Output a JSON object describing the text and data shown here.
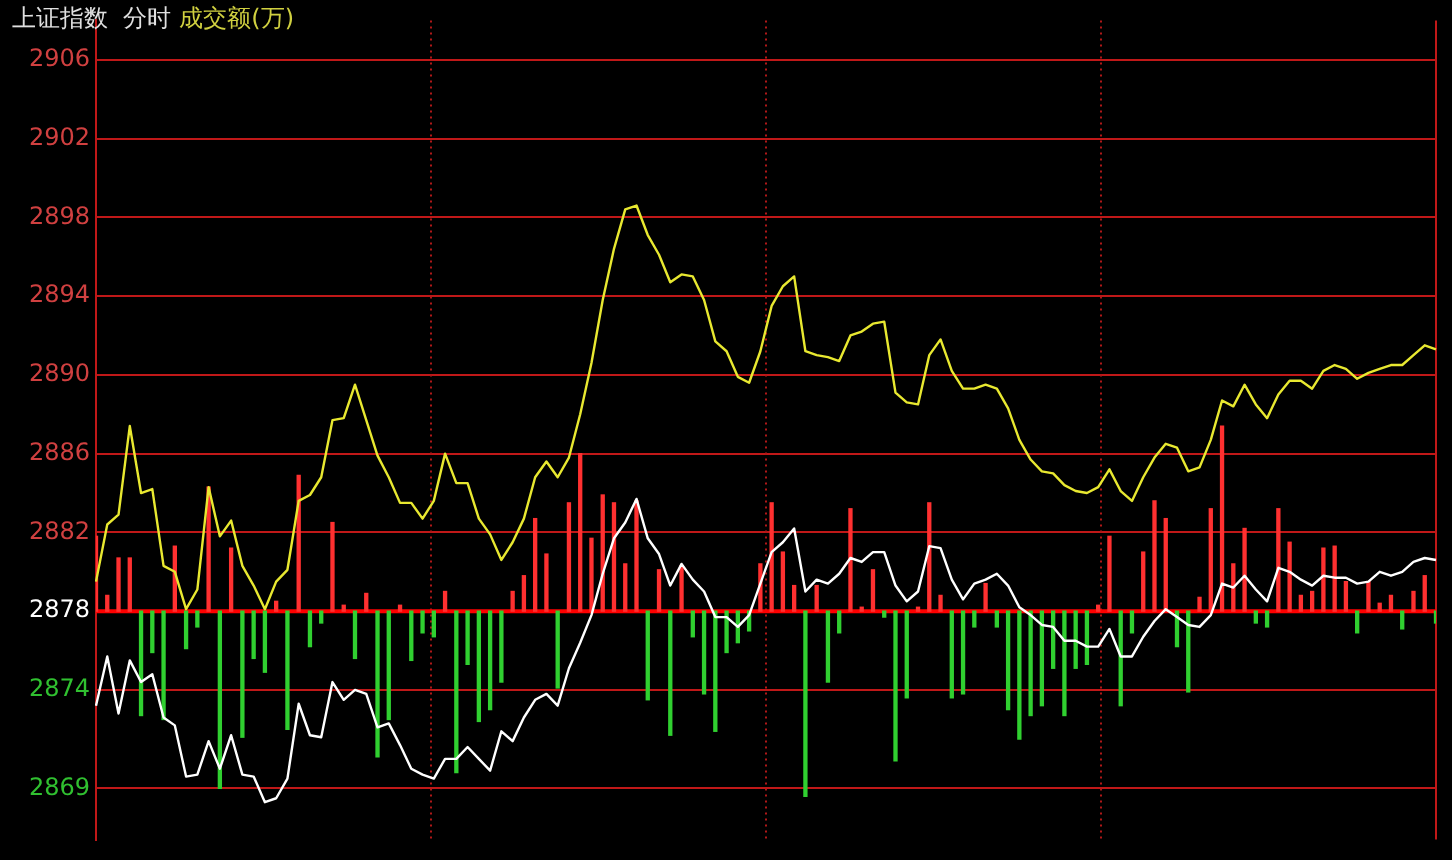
{
  "chart_data": {
    "type": "line",
    "title": "上证指数  分时",
    "subtitle": "成交额(万)",
    "categories": [
      null,
      null,
      null,
      null,
      null,
      null,
      null,
      null,
      null,
      null,
      null,
      null,
      null,
      null,
      null,
      null,
      null,
      null,
      null,
      null,
      null,
      null,
      null,
      null,
      null,
      null,
      null,
      null,
      null,
      null,
      null,
      null,
      null,
      null,
      null,
      null,
      null,
      null,
      null,
      null,
      null,
      null,
      null,
      null,
      null,
      null,
      null,
      null,
      null,
      null,
      null,
      null,
      null,
      null,
      null,
      null,
      null,
      null,
      null,
      null,
      null,
      null,
      null,
      null,
      null,
      null,
      null,
      null,
      null,
      null,
      null,
      null,
      null,
      null,
      null,
      null,
      null,
      null,
      null,
      null,
      null,
      null,
      null,
      null,
      null,
      null,
      null,
      null,
      null,
      null,
      null,
      null,
      null,
      null,
      null,
      null,
      null,
      null,
      null,
      null,
      null,
      null,
      null,
      null,
      null,
      null,
      null,
      null,
      null,
      null,
      null,
      null,
      null,
      null,
      null,
      null,
      null,
      null,
      null,
      null
    ],
    "series": [
      {
        "type": "bar",
        "base": [
          2878,
          2878,
          2878,
          2878,
          2878,
          2878,
          2878,
          2878,
          2878,
          2878,
          2878,
          2878,
          2878,
          2878,
          2878,
          2878,
          2878,
          2878,
          2878,
          2878,
          2878,
          2878,
          2878,
          2878,
          2878,
          2878,
          2878,
          2878,
          2878,
          2878,
          2878,
          2878,
          2878,
          2878,
          2878,
          2878,
          2878,
          2878,
          2878,
          2878,
          2878,
          2878,
          2878,
          2878,
          2878,
          2878,
          2878,
          2878,
          2878,
          2878,
          2878,
          2878,
          2878,
          2878,
          2878,
          2878,
          2878,
          2878,
          2878,
          2878,
          2878,
          2878,
          2878,
          2878,
          2878,
          2878,
          2878,
          2878,
          2878,
          2878,
          2878,
          2878,
          2878,
          2878,
          2878,
          2878,
          2878,
          2878,
          2878,
          2878,
          2878,
          2878,
          2878,
          2878,
          2878,
          2878,
          2878,
          2878,
          2878,
          2878,
          2878,
          2878,
          2878,
          2878,
          2878,
          2878,
          2878,
          2878,
          2878,
          2878,
          2878,
          2878,
          2878,
          2878,
          2878,
          2878,
          2878,
          2878,
          2878,
          2878,
          2878,
          2878,
          2878,
          2878,
          2878,
          2878,
          2878,
          2878,
          2878,
          2878
        ],
        "values": [
          3.8,
          0.8,
          2.7,
          2.7,
          -5.3,
          -2.1,
          -5.5,
          3.3,
          -1.9,
          -0.8,
          6.3,
          -9.0,
          3.2,
          -6.4,
          -2.4,
          -3.1,
          0.5,
          -6.0,
          6.9,
          -1.8,
          -0.6,
          4.5,
          0.3,
          -2.4,
          0.9,
          -7.4,
          -5.5,
          0.3,
          -2.5,
          -1.1,
          -1.3,
          1.0,
          -8.2,
          -2.7,
          -5.6,
          -5.0,
          -3.6,
          1.0,
          1.8,
          4.7,
          2.9,
          -3.9,
          5.5,
          8.0,
          3.7,
          5.9,
          5.5,
          2.4,
          5.6,
          -4.5,
          2.1,
          -6.3,
          2.3,
          -1.3,
          -4.2,
          -6.1,
          -2.1,
          -1.6,
          -1.0,
          2.4,
          5.5,
          3.0,
          1.3,
          -9.4,
          1.3,
          -3.6,
          -1.1,
          5.2,
          0.2,
          2.1,
          -0.3,
          -7.6,
          -4.4,
          0.2,
          5.5,
          0.8,
          -4.4,
          -4.2,
          -0.8,
          1.4,
          -0.8,
          -5.0,
          -6.5,
          -5.3,
          -4.8,
          -2.9,
          -5.3,
          -2.9,
          -2.7,
          0.3,
          3.8,
          -4.8,
          -1.1,
          3.0,
          5.6,
          4.7,
          -1.8,
          -4.1,
          0.7,
          5.2,
          9.4,
          2.4,
          4.2,
          -0.6,
          -0.8,
          5.2,
          3.5,
          0.8,
          1.0,
          3.2,
          3.3,
          1.5,
          -1.1,
          1.5,
          0.4,
          0.8,
          -0.9,
          1.0,
          1.8,
          -0.6
        ],
        "colors": [
          "#ff3030",
          "#ff3030",
          "#ff3030",
          "#ff3030",
          "#30d030",
          "#30d030",
          "#30d030",
          "#ff3030",
          "#30d030",
          "#30d030",
          "#ff3030",
          "#30d030",
          "#ff3030",
          "#30d030",
          "#30d030",
          "#30d030",
          "#ff3030",
          "#30d030",
          "#ff3030",
          "#30d030",
          "#30d030",
          "#ff3030",
          "#ff3030",
          "#30d030",
          "#ff3030",
          "#30d030",
          "#30d030",
          "#ff3030",
          "#30d030",
          "#30d030",
          "#30d030",
          "#ff3030",
          "#30d030",
          "#30d030",
          "#30d030",
          "#30d030",
          "#30d030",
          "#ff3030",
          "#ff3030",
          "#ff3030",
          "#ff3030",
          "#30d030",
          "#ff3030",
          "#ff3030",
          "#ff3030",
          "#ff3030",
          "#ff3030",
          "#ff3030",
          "#ff3030",
          "#30d030",
          "#ff3030",
          "#30d030",
          "#ff3030",
          "#30d030",
          "#30d030",
          "#30d030",
          "#30d030",
          "#30d030",
          "#30d030",
          "#ff3030",
          "#ff3030",
          "#ff3030",
          "#ff3030",
          "#30d030",
          "#ff3030",
          "#30d030",
          "#30d030",
          "#ff3030",
          "#ff3030",
          "#ff3030",
          "#30d030",
          "#30d030",
          "#30d030",
          "#ff3030",
          "#ff3030",
          "#ff3030",
          "#30d030",
          "#30d030",
          "#30d030",
          "#ff3030",
          "#30d030",
          "#30d030",
          "#30d030",
          "#30d030",
          "#30d030",
          "#30d030",
          "#30d030",
          "#30d030",
          "#30d030",
          "#ff3030",
          "#ff3030",
          "#30d030",
          "#30d030",
          "#ff3030",
          "#ff3030",
          "#ff3030",
          "#30d030",
          "#30d030",
          "#ff3030",
          "#ff3030",
          "#ff3030",
          "#ff3030",
          "#ff3030",
          "#30d030",
          "#30d030",
          "#ff3030",
          "#ff3030",
          "#ff3030",
          "#ff3030",
          "#ff3030",
          "#ff3030",
          "#ff3030",
          "#30d030",
          "#ff3030",
          "#ff3030",
          "#ff3030",
          "#30d030",
          "#ff3030",
          "#ff3030",
          "#30d030"
        ]
      },
      {
        "color": "#e8e830",
        "values": [
          2879.5,
          2882.4,
          2882.9,
          2887.4,
          2884.0,
          2884.2,
          2880.3,
          2880.0,
          2878.1,
          2879.1,
          2884.3,
          2881.8,
          2882.6,
          2880.3,
          2879.3,
          2878.1,
          2879.5,
          2880.1,
          2883.6,
          2883.9,
          2884.8,
          2887.7,
          2887.8,
          2889.5,
          2887.7,
          2885.9,
          2884.8,
          2883.5,
          2883.5,
          2882.7,
          2883.6,
          2886.0,
          2884.5,
          2884.5,
          2882.7,
          2881.9,
          2880.6,
          2881.5,
          2882.7,
          2884.8,
          2885.6,
          2884.8,
          2885.8,
          2888.0,
          2890.6,
          2893.8,
          2896.4,
          2898.4,
          2898.6,
          2897.1,
          2896.1,
          2894.7,
          2895.1,
          2895.0,
          2893.8,
          2891.7,
          2891.2,
          2889.9,
          2889.6,
          2891.2,
          2893.5,
          2894.5,
          2895.0,
          2891.2,
          2891.0,
          2890.9,
          2890.7,
          2892.0,
          2892.2,
          2892.6,
          2892.7,
          2889.1,
          2888.6,
          2888.5,
          2891.0,
          2891.8,
          2890.2,
          2889.3,
          2889.3,
          2889.5,
          2889.3,
          2888.3,
          2886.7,
          2885.7,
          2885.1,
          2885.0,
          2884.4,
          2884.1,
          2884.0,
          2884.3,
          2885.2,
          2884.1,
          2883.6,
          2884.8,
          2885.8,
          2886.5,
          2886.3,
          2885.1,
          2885.3,
          2886.7,
          2888.7,
          2888.4,
          2889.5,
          2888.5,
          2887.8,
          2889.0,
          2889.7,
          2889.7,
          2889.3,
          2890.2,
          2890.5,
          2890.3,
          2889.8,
          2890.1,
          2890.3,
          2890.5,
          2890.5,
          2891.0,
          2891.5,
          2891.3
        ]
      },
      {
        "color": "#ffffff",
        "values": [
          2873.2,
          2875.7,
          2872.8,
          2875.5,
          2874.4,
          2874.8,
          2872.6,
          2872.2,
          2869.6,
          2869.7,
          2871.4,
          2870.0,
          2871.7,
          2869.7,
          2869.6,
          2868.3,
          2868.5,
          2869.5,
          2873.3,
          2871.7,
          2871.6,
          2874.4,
          2873.5,
          2874.0,
          2873.8,
          2872.1,
          2872.3,
          2871.2,
          2870.0,
          2869.7,
          2869.5,
          2870.5,
          2870.5,
          2871.1,
          2870.5,
          2869.9,
          2871.9,
          2871.4,
          2872.6,
          2873.5,
          2873.8,
          2873.2,
          2875.1,
          2876.4,
          2877.8,
          2879.9,
          2881.7,
          2882.5,
          2883.7,
          2881.7,
          2880.9,
          2879.3,
          2880.4,
          2879.6,
          2879.0,
          2877.7,
          2877.7,
          2877.2,
          2877.8,
          2879.4,
          2881.0,
          2881.5,
          2882.2,
          2879.0,
          2879.6,
          2879.4,
          2879.9,
          2880.7,
          2880.5,
          2881.0,
          2881.0,
          2879.3,
          2878.5,
          2879.0,
          2881.3,
          2881.2,
          2879.6,
          2878.6,
          2879.4,
          2879.6,
          2879.9,
          2879.3,
          2878.2,
          2877.8,
          2877.3,
          2877.2,
          2876.5,
          2876.5,
          2876.2,
          2876.2,
          2877.1,
          2875.7,
          2875.7,
          2876.7,
          2877.5,
          2878.1,
          2877.7,
          2877.3,
          2877.2,
          2877.8,
          2879.4,
          2879.2,
          2879.8,
          2879.1,
          2878.5,
          2880.2,
          2880.0,
          2879.6,
          2879.3,
          2879.8,
          2879.7,
          2879.7,
          2879.4,
          2879.5,
          2880.0,
          2879.8,
          2880.0,
          2880.5,
          2880.7,
          2880.6
        ]
      }
    ],
    "ylim": [
      2866.4,
      2908
    ],
    "yticks": [
      2906,
      2902,
      2898,
      2894,
      2890,
      2886,
      2882,
      2878,
      2874,
      2869
    ],
    "ref_lines": [
      {
        "axis": "y",
        "value": 2878,
        "color": "#ff0000"
      }
    ],
    "grid": true,
    "tick_labels": "y",
    "marker": "none",
    "line_style": "solid",
    "legend": false
  }
}
